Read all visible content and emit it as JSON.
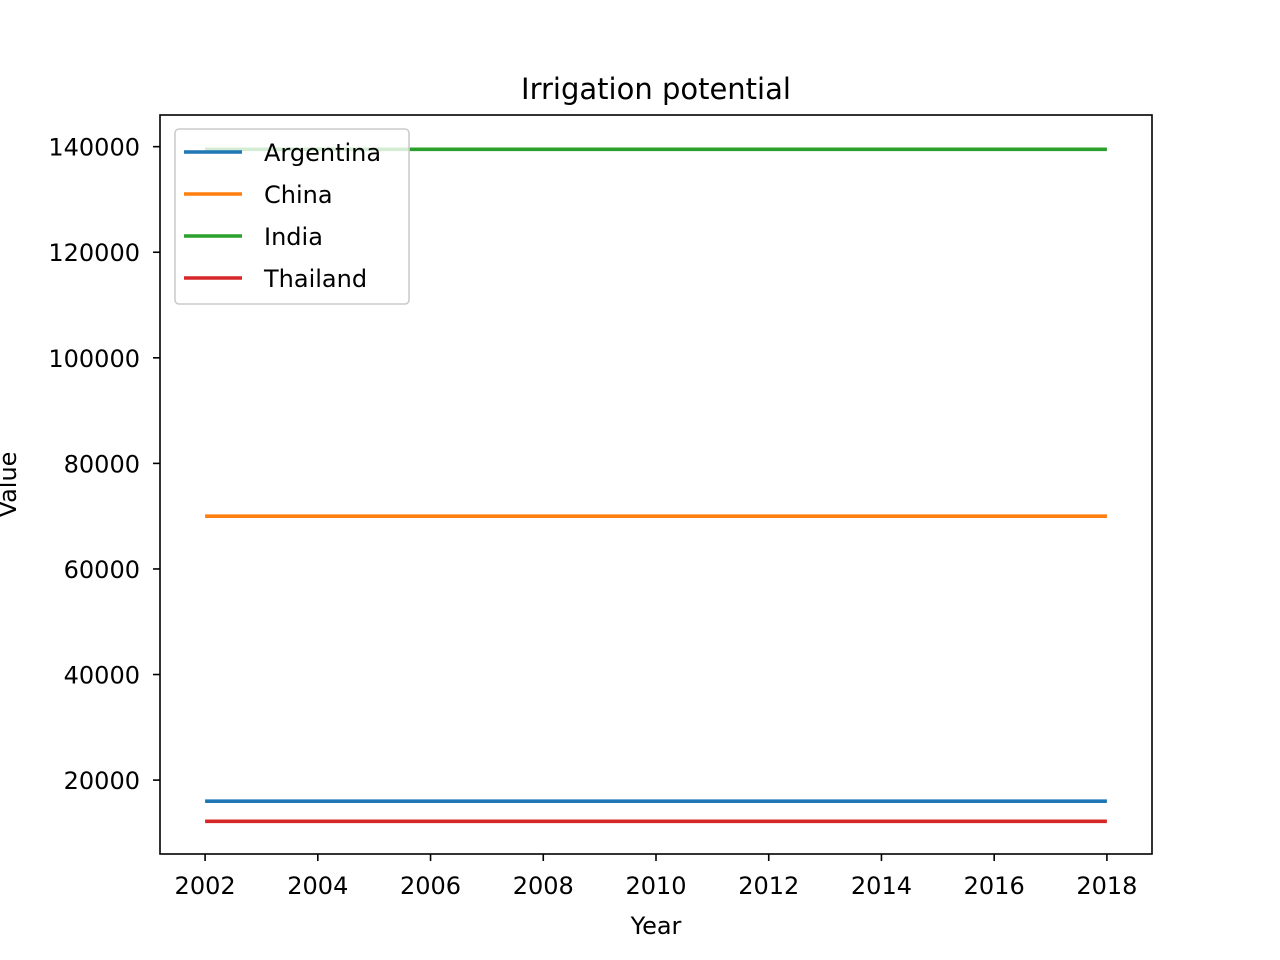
{
  "chart_data": {
    "type": "line",
    "title": "Irrigation potential",
    "xlabel": "Year",
    "ylabel": "Value",
    "x": [
      2002,
      2018
    ],
    "xlim": [
      2001.2,
      2018.8
    ],
    "ylim": [
      6000,
      146000
    ],
    "xticks": [
      2002,
      2004,
      2006,
      2008,
      2010,
      2012,
      2014,
      2016,
      2018
    ],
    "yticks": [
      20000,
      40000,
      60000,
      80000,
      100000,
      120000,
      140000
    ],
    "grid": false,
    "legend_position": "top-left",
    "series": [
      {
        "name": "Argentina",
        "color": "#1f77b4",
        "values": [
          16000,
          16000
        ]
      },
      {
        "name": "China",
        "color": "#ff7f0e",
        "values": [
          70000,
          70000
        ]
      },
      {
        "name": "India",
        "color": "#2ca02c",
        "values": [
          139500,
          139500
        ]
      },
      {
        "name": "Thailand",
        "color": "#d62728",
        "values": [
          12200,
          12200
        ]
      }
    ]
  }
}
